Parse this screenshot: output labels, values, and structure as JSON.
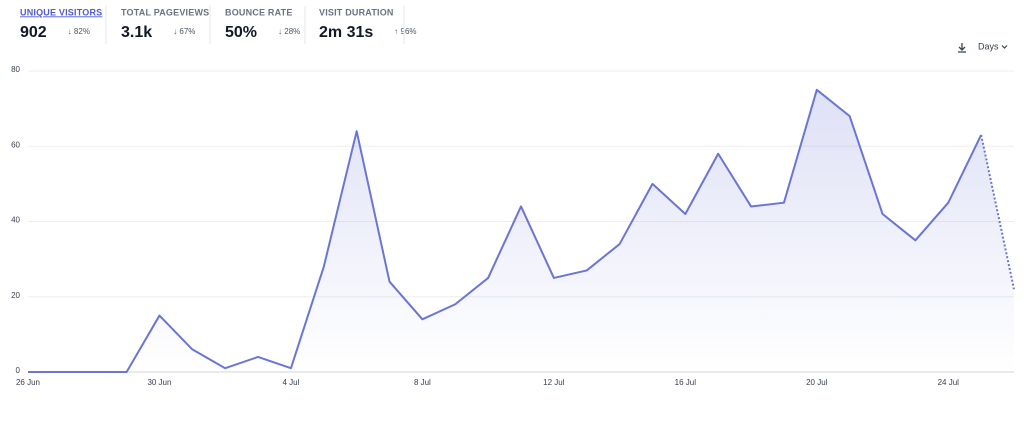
{
  "metrics": [
    {
      "label": "UNIQUE VISITORS",
      "value": "902",
      "change": "↓ 82%"
    },
    {
      "label": "TOTAL PAGEVIEWS",
      "value": "3.1k",
      "change": "↓ 67%"
    },
    {
      "label": "BOUNCE RATE",
      "value": "50%",
      "change": "↓ 28%"
    },
    {
      "label": "VISIT DURATION",
      "value": "2m 31s",
      "change": "↑ 96%"
    }
  ],
  "interval": "Days",
  "chart_data": {
    "type": "line",
    "categories": [
      "26 Jun",
      null,
      null,
      null,
      "30 Jun",
      null,
      null,
      null,
      "4 Jul",
      null,
      null,
      null,
      "8 Jul",
      null,
      null,
      null,
      "12 Jul",
      null,
      null,
      null,
      "16 Jul",
      null,
      null,
      null,
      "20 Jul",
      null,
      null,
      null,
      "24 Jul",
      null,
      null
    ],
    "values": [
      0,
      0,
      0,
      0,
      15,
      6,
      1,
      4,
      1,
      28,
      64,
      24,
      14,
      18,
      25,
      44,
      25,
      27,
      34,
      50,
      42,
      58,
      44,
      45,
      75,
      68,
      42,
      35,
      45,
      63,
      22
    ],
    "color": "#6a75d4",
    "dotted_last_segment": true,
    "ylim": [
      0,
      80
    ],
    "yticks": [
      0,
      20,
      40,
      60,
      80
    ],
    "grid": true
  }
}
